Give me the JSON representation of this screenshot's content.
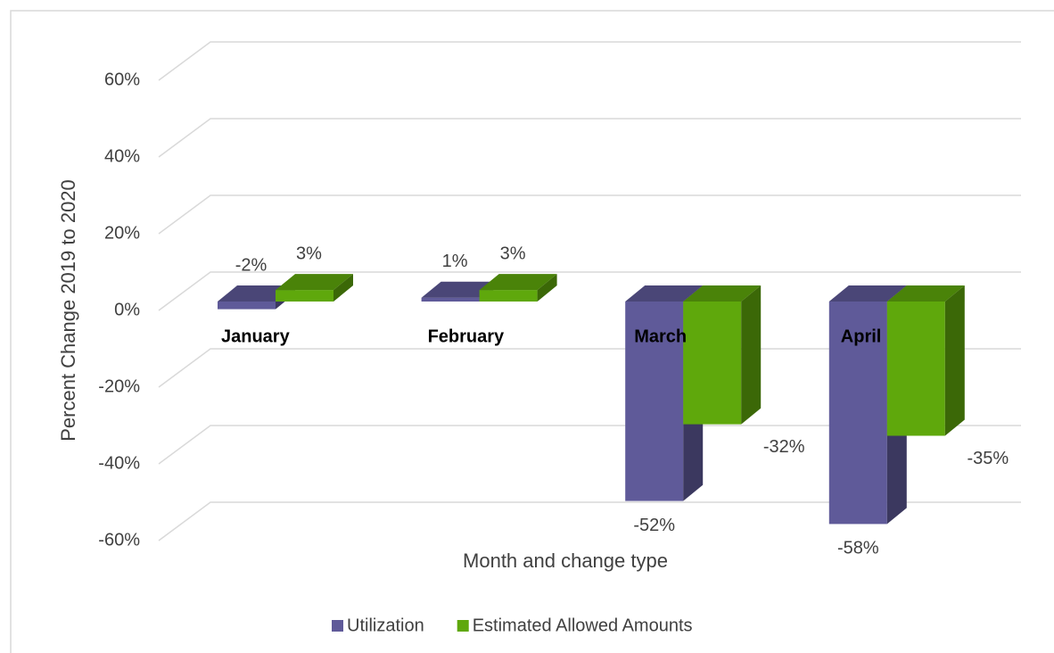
{
  "chart_data": {
    "type": "bar3d",
    "x_label": "Month and change type",
    "y_label": "Percent Change 2019 to 2020",
    "categories": [
      "January",
      "February",
      "March",
      "April"
    ],
    "series": [
      {
        "name": "Utilization",
        "color": "#5f5a99",
        "values": [
          -2,
          1,
          -52,
          -58
        ],
        "value_labels": [
          "-2%",
          "1%",
          "-52%",
          "-58%"
        ]
      },
      {
        "name": "Estimated Allowed Amounts",
        "color": "#5fa80c",
        "values": [
          3,
          3,
          -32,
          -35
        ],
        "value_labels": [
          "3%",
          "3%",
          "-32%",
          "-35%"
        ]
      }
    ],
    "ylim": [
      -60,
      60
    ],
    "yticks": [
      {
        "value": -60,
        "label": "-60%"
      },
      {
        "value": -40,
        "label": "-40%"
      },
      {
        "value": -20,
        "label": "-20%"
      },
      {
        "value": 0,
        "label": "0%"
      },
      {
        "value": 20,
        "label": "20%"
      },
      {
        "value": 40,
        "label": "40%"
      },
      {
        "value": 60,
        "label": "60%"
      }
    ],
    "grid": true,
    "legend": "bottom"
  }
}
